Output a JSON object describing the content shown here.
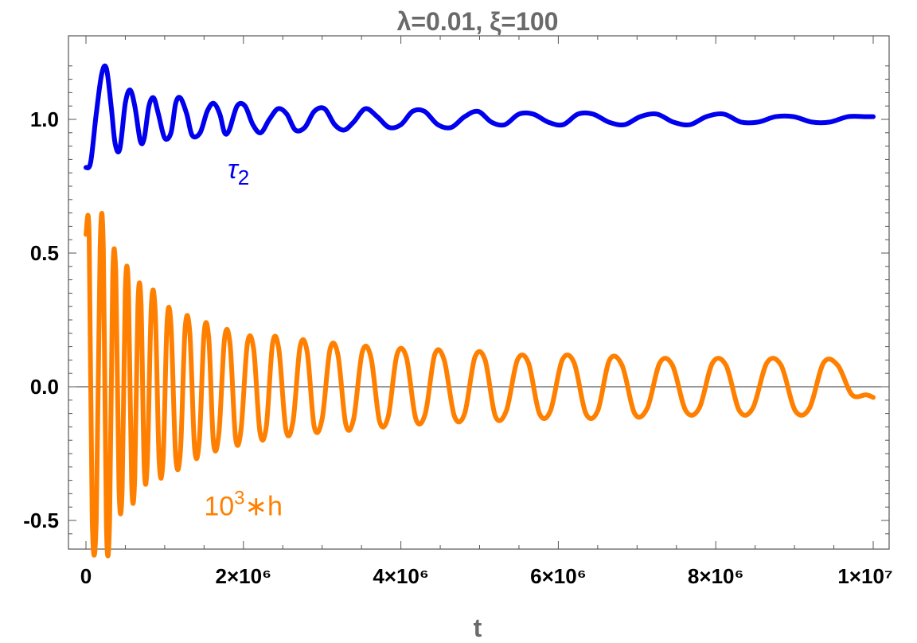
{
  "chart_data": {
    "type": "line",
    "title": "λ=0.01, ξ=100",
    "xlabel": "t",
    "ylabel": "",
    "xlim": [
      0,
      10000000
    ],
    "ylim": [
      -0.6,
      1.25
    ],
    "grid": false,
    "x_ticks": [
      {
        "value": 0,
        "label": "0"
      },
      {
        "value": 2000000,
        "label": "2×10⁶"
      },
      {
        "value": 4000000,
        "label": "4×10⁶"
      },
      {
        "value": 6000000,
        "label": "6×10⁶"
      },
      {
        "value": 8000000,
        "label": "8×10⁶"
      },
      {
        "value": 10000000,
        "label": "1×10⁷"
      }
    ],
    "y_ticks": [
      {
        "value": -0.5,
        "label": "-0.5"
      },
      {
        "value": 0.0,
        "label": "0.0"
      },
      {
        "value": 0.5,
        "label": "0.5"
      },
      {
        "value": 1.0,
        "label": "1.0"
      }
    ],
    "series": [
      {
        "name": "τ2",
        "label_main": "τ",
        "label_sub": "2",
        "color": "#0000ee",
        "label_at": {
          "x": 1800000,
          "y": 0.78
        },
        "x": [
          0,
          60000,
          130000,
          200000,
          260000,
          320000,
          370000,
          430000,
          500000,
          560000,
          620000,
          690000,
          740000,
          800000,
          860000,
          920000,
          1000000,
          1080000,
          1140000,
          1200000,
          1280000,
          1350000,
          1450000,
          1540000,
          1620000,
          1700000,
          1760000,
          1820000,
          1920000,
          2020000,
          2120000,
          2220000,
          2330000,
          2440000,
          2550000,
          2660000,
          2780000,
          2900000,
          3030000,
          3160000,
          3280000,
          3400000,
          3550000,
          3700000,
          3850000,
          4000000,
          4150000,
          4300000,
          4470000,
          4640000,
          4810000,
          4980000,
          5150000,
          5320000,
          5500000,
          5680000,
          5870000,
          6060000,
          6250000,
          6440000,
          6640000,
          6840000,
          7040000,
          7250000,
          7460000,
          7670000,
          7880000,
          8100000,
          8320000,
          8540000,
          8760000,
          8990000,
          9220000,
          9450000,
          9680000,
          9900000,
          10000000
        ],
        "values": [
          0.82,
          0.84,
          1.02,
          1.17,
          1.19,
          1.05,
          0.91,
          0.89,
          1.06,
          1.11,
          1.05,
          0.92,
          0.93,
          1.05,
          1.08,
          1.02,
          0.93,
          0.95,
          1.06,
          1.08,
          1.02,
          0.94,
          0.95,
          1.03,
          1.06,
          1.02,
          0.95,
          0.96,
          1.05,
          1.05,
          0.98,
          0.95,
          1.0,
          1.04,
          1.02,
          0.96,
          0.97,
          1.03,
          1.04,
          0.98,
          0.96,
          0.99,
          1.04,
          1.01,
          0.97,
          0.98,
          1.03,
          1.03,
          0.98,
          0.97,
          1.01,
          1.03,
          0.99,
          0.98,
          1.02,
          1.02,
          0.99,
          0.98,
          1.02,
          1.02,
          0.99,
          0.98,
          1.01,
          1.02,
          0.99,
          0.98,
          1.01,
          1.02,
          0.99,
          0.99,
          1.01,
          1.01,
          0.99,
          0.99,
          1.01,
          1.01,
          1.01
        ]
      },
      {
        "name": "10³*h",
        "label_main": "10",
        "label_sup": "3",
        "label_tail": "∗h",
        "color": "#ff8000",
        "label_at": {
          "x": 1500000,
          "y": -0.48
        },
        "x": [
          0,
          40000,
          80000,
          130000,
          180000,
          220000,
          260000,
          300000,
          340000,
          380000,
          420000,
          460000,
          500000,
          540000,
          580000,
          620000,
          660000,
          700000,
          740000,
          780000,
          830000,
          880000,
          930000,
          980000,
          1030000,
          1080000,
          1140000,
          1200000,
          1260000,
          1320000,
          1380000,
          1440000,
          1500000,
          1560000,
          1620000,
          1690000,
          1760000,
          1830000,
          1900000,
          1970000,
          2050000,
          2130000,
          2210000,
          2290000,
          2370000,
          2450000,
          2540000,
          2630000,
          2720000,
          2810000,
          2900000,
          3000000,
          3100000,
          3200000,
          3300000,
          3400000,
          3510000,
          3620000,
          3730000,
          3840000,
          3950000,
          4070000,
          4190000,
          4310000,
          4430000,
          4550000,
          4680000,
          4810000,
          4940000,
          5070000,
          5200000,
          5340000,
          5480000,
          5620000,
          5760000,
          5900000,
          6050000,
          6200000,
          6350000,
          6500000,
          6650000,
          6810000,
          6970000,
          7130000,
          7290000,
          7450000,
          7620000,
          7790000,
          7960000,
          8130000,
          8300000,
          8470000,
          8650000,
          8830000,
          9010000,
          9190000,
          9370000,
          9550000,
          9730000,
          9910000,
          10000000
        ],
        "values": [
          0.57,
          0.56,
          -0.5,
          -0.5,
          0.52,
          0.52,
          -0.52,
          -0.5,
          0.41,
          0.41,
          -0.38,
          -0.38,
          0.36,
          0.36,
          -0.36,
          -0.34,
          0.31,
          0.31,
          -0.3,
          -0.28,
          0.3,
          0.28,
          -0.28,
          -0.27,
          0.24,
          0.23,
          -0.26,
          -0.24,
          0.22,
          0.2,
          -0.23,
          -0.2,
          0.2,
          0.18,
          -0.21,
          -0.17,
          0.18,
          0.16,
          -0.19,
          -0.16,
          0.16,
          0.14,
          -0.17,
          -0.15,
          0.16,
          0.14,
          -0.16,
          -0.13,
          0.15,
          0.13,
          -0.15,
          -0.12,
          0.14,
          0.12,
          -0.14,
          -0.12,
          0.13,
          0.11,
          -0.13,
          -0.11,
          0.12,
          0.11,
          -0.12,
          -0.1,
          0.12,
          0.1,
          -0.11,
          -0.1,
          0.11,
          0.1,
          -0.11,
          -0.09,
          0.1,
          0.09,
          -0.1,
          -0.09,
          0.1,
          0.09,
          -0.1,
          -0.09,
          0.1,
          0.08,
          -0.1,
          -0.08,
          0.09,
          0.08,
          -0.09,
          -0.08,
          0.09,
          0.08,
          -0.09,
          -0.08,
          0.09,
          0.08,
          -0.09,
          -0.08,
          0.09,
          0.08,
          -0.03,
          -0.03,
          -0.04
        ]
      }
    ]
  }
}
